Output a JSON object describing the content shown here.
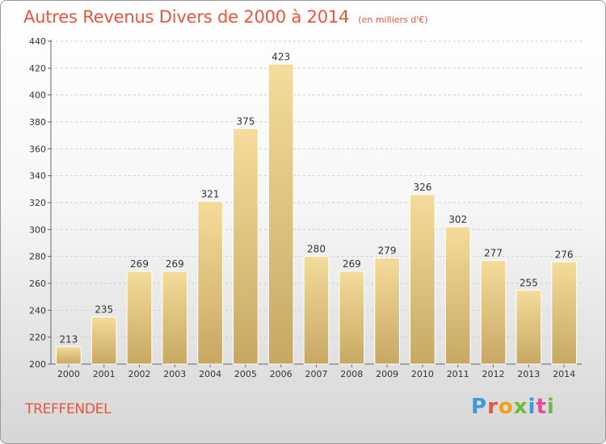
{
  "header": {
    "title": "Autres Revenus Divers de 2000 à 2014",
    "subtitle": "(en milliers d'€)"
  },
  "footer": {
    "commune": "TREFFENDEL",
    "logo_text": "Proxiti",
    "logo_colors": [
      "#3b9ad9",
      "#e8553a",
      "#f0a019",
      "#6abf3a",
      "#3b9ad9",
      "#e84a9a",
      "#6abf3a"
    ]
  },
  "colors": {
    "title": "#e8553a",
    "bar_light": "#f5dc9a",
    "bar_dark": "#c6a862"
  },
  "chart_data": {
    "type": "bar",
    "title": "Autres Revenus Divers de 2000 à 2014",
    "subtitle": "(en milliers d'€)",
    "categories": [
      "2000",
      "2001",
      "2002",
      "2003",
      "2004",
      "2005",
      "2006",
      "2007",
      "2008",
      "2009",
      "2010",
      "2011",
      "2012",
      "2013",
      "2014"
    ],
    "values": [
      213,
      235,
      269,
      269,
      321,
      375,
      423,
      280,
      269,
      279,
      326,
      302,
      277,
      255,
      276
    ],
    "ylim": [
      200,
      440
    ],
    "yticks": [
      200,
      220,
      240,
      260,
      280,
      300,
      320,
      340,
      360,
      380,
      400,
      420,
      440
    ],
    "grid": true,
    "data_labels": true
  }
}
